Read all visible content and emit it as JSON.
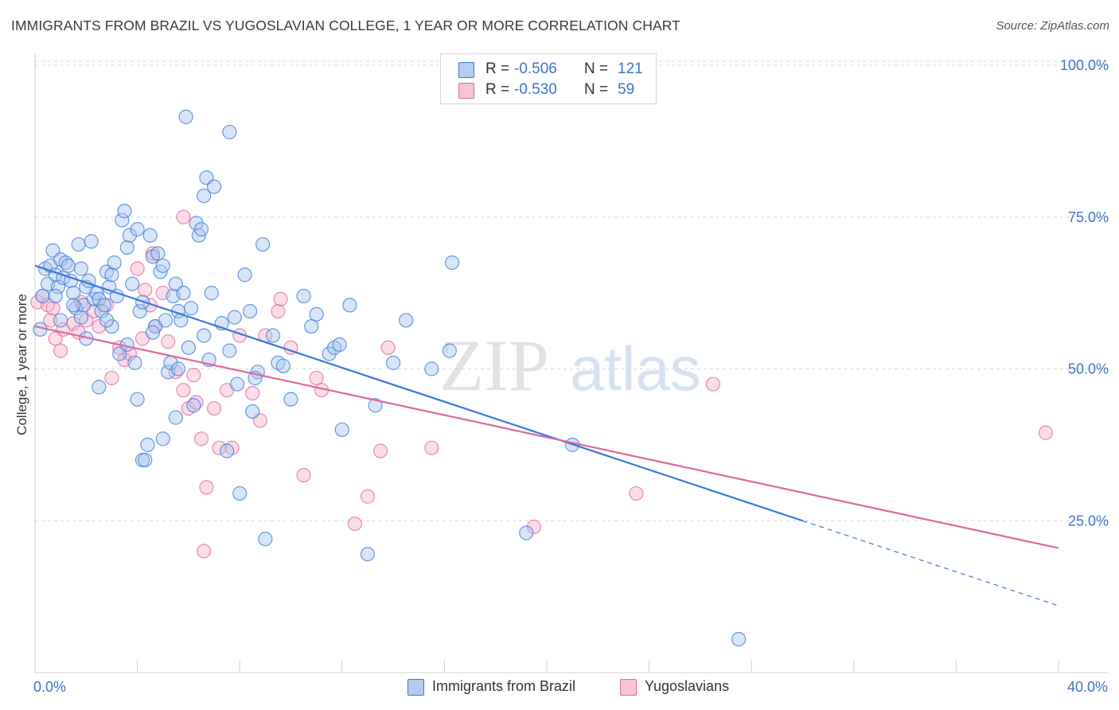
{
  "title": "IMMIGRANTS FROM BRAZIL VS YUGOSLAVIAN COLLEGE, 1 YEAR OR MORE CORRELATION CHART",
  "source": "Source: ZipAtlas.com",
  "watermark": {
    "part1": "ZIP",
    "part2": "atlas"
  },
  "colors": {
    "blue": "#3b78d8",
    "blue_fill": "#a9c6ee",
    "pink": "#e0679a",
    "pink_fill": "#f5b3cb",
    "axis_text": "#3f73c6",
    "grid": "#d9d9d9"
  },
  "stats_legend": {
    "rows": [
      {
        "r_label": "R =",
        "r_value": "-0.506",
        "n_label": "N =",
        "n_value": "121",
        "series": "blue"
      },
      {
        "r_label": "R =",
        "r_value": "-0.530",
        "n_label": "N =",
        "n_value": "59",
        "series": "pink"
      }
    ]
  },
  "chart_data": {
    "type": "scatter",
    "title": "IMMIGRANTS FROM BRAZIL VS YUGOSLAVIAN COLLEGE, 1 YEAR OR MORE CORRELATION CHART",
    "xlabel": "",
    "ylabel": "College, 1 year or more",
    "xlim": [
      0,
      40
    ],
    "ylim": [
      0,
      105
    ],
    "x_tick_labels": [
      {
        "value": 0,
        "label": "0.0%"
      },
      {
        "value": 40,
        "label": "40.0%"
      }
    ],
    "x_minor_ticks": [
      4,
      8,
      12,
      16,
      20,
      24,
      28,
      32,
      36,
      40
    ],
    "y_ticks": [
      {
        "value": 100,
        "label": "100.0%"
      },
      {
        "value": 75,
        "label": "75.0%"
      },
      {
        "value": 50,
        "label": "50.0%"
      },
      {
        "value": 25,
        "label": "25.0%"
      }
    ],
    "grid": true,
    "series": [
      {
        "name": "Immigrants from Brazil",
        "color": "blue",
        "R": -0.506,
        "N": 121,
        "trend": {
          "x_start": 0,
          "y_start": 67.0,
          "x_solid_end": 30.0,
          "y_solid_end": 25.0,
          "x_end": 40,
          "y_end": 11.0
        },
        "points": [
          [
            0.2,
            56.5
          ],
          [
            0.3,
            62.0
          ],
          [
            0.4,
            66.5
          ],
          [
            0.5,
            64.0
          ],
          [
            0.6,
            67.0
          ],
          [
            0.7,
            69.5
          ],
          [
            0.8,
            65.5
          ],
          [
            0.9,
            63.5
          ],
          [
            1.0,
            68.0
          ],
          [
            1.1,
            65.0
          ],
          [
            1.2,
            67.5
          ],
          [
            1.3,
            67.0
          ],
          [
            1.4,
            64.5
          ],
          [
            1.5,
            62.5
          ],
          [
            1.6,
            60.0
          ],
          [
            1.7,
            70.5
          ],
          [
            1.8,
            58.5
          ],
          [
            1.9,
            60.5
          ],
          [
            2.0,
            63.5
          ],
          [
            2.1,
            64.5
          ],
          [
            2.2,
            71.0
          ],
          [
            2.3,
            61.5
          ],
          [
            2.4,
            62.5
          ],
          [
            2.5,
            61.5
          ],
          [
            2.6,
            59.5
          ],
          [
            2.7,
            60.5
          ],
          [
            2.8,
            66.0
          ],
          [
            2.9,
            63.5
          ],
          [
            3.0,
            65.5
          ],
          [
            3.1,
            67.5
          ],
          [
            3.2,
            62.0
          ],
          [
            3.3,
            52.5
          ],
          [
            3.4,
            74.5
          ],
          [
            3.5,
            76.0
          ],
          [
            3.6,
            70.0
          ],
          [
            3.7,
            72.0
          ],
          [
            3.8,
            64.0
          ],
          [
            3.9,
            51.0
          ],
          [
            4.0,
            73.0
          ],
          [
            4.1,
            59.5
          ],
          [
            4.2,
            35.0
          ],
          [
            4.3,
            35.0
          ],
          [
            4.4,
            37.5
          ],
          [
            4.5,
            72.0
          ],
          [
            4.6,
            68.5
          ],
          [
            4.7,
            57.0
          ],
          [
            4.8,
            69.0
          ],
          [
            4.9,
            66.0
          ],
          [
            5.0,
            67.0
          ],
          [
            5.1,
            58.0
          ],
          [
            5.2,
            49.5
          ],
          [
            5.3,
            51.0
          ],
          [
            5.4,
            62.0
          ],
          [
            5.5,
            64.0
          ],
          [
            5.6,
            59.5
          ],
          [
            5.7,
            58.0
          ],
          [
            5.8,
            62.5
          ],
          [
            5.9,
            91.5
          ],
          [
            6.0,
            53.5
          ],
          [
            6.1,
            60.0
          ],
          [
            6.3,
            74.0
          ],
          [
            6.4,
            72.0
          ],
          [
            6.5,
            73.0
          ],
          [
            6.6,
            78.5
          ],
          [
            6.7,
            81.5
          ],
          [
            6.8,
            51.5
          ],
          [
            6.9,
            62.5
          ],
          [
            7.0,
            80.0
          ],
          [
            7.3,
            57.5
          ],
          [
            7.6,
            89.0
          ],
          [
            7.8,
            58.5
          ],
          [
            7.9,
            47.5
          ],
          [
            8.0,
            29.5
          ],
          [
            8.2,
            65.5
          ],
          [
            8.4,
            59.5
          ],
          [
            8.5,
            43.0
          ],
          [
            8.7,
            49.5
          ],
          [
            8.9,
            70.5
          ],
          [
            9.0,
            22.0
          ],
          [
            9.3,
            55.5
          ],
          [
            9.5,
            51.0
          ],
          [
            9.7,
            50.5
          ],
          [
            10.0,
            45.0
          ],
          [
            10.5,
            62.0
          ],
          [
            10.8,
            57.0
          ],
          [
            11.0,
            59.0
          ],
          [
            11.5,
            52.5
          ],
          [
            11.7,
            53.5
          ],
          [
            11.9,
            54.0
          ],
          [
            12.0,
            40.0
          ],
          [
            12.3,
            60.5
          ],
          [
            13.0,
            19.5
          ],
          [
            13.3,
            44.0
          ],
          [
            14.0,
            51.0
          ],
          [
            14.5,
            58.0
          ],
          [
            15.5,
            50.0
          ],
          [
            16.2,
            53.0
          ],
          [
            16.3,
            67.5
          ],
          [
            19.2,
            23.0
          ],
          [
            21.0,
            37.5
          ],
          [
            27.5,
            5.5
          ],
          [
            1.5,
            60.5
          ],
          [
            2.5,
            47.0
          ],
          [
            4.0,
            45.0
          ],
          [
            5.0,
            38.5
          ],
          [
            5.5,
            42.0
          ],
          [
            6.2,
            44.0
          ],
          [
            7.5,
            36.5
          ],
          [
            1.0,
            58.0
          ],
          [
            2.0,
            55.0
          ],
          [
            3.0,
            57.0
          ],
          [
            4.2,
            61.0
          ],
          [
            0.8,
            62.0
          ],
          [
            1.8,
            66.5
          ],
          [
            2.8,
            58.0
          ],
          [
            3.6,
            54.0
          ],
          [
            4.6,
            56.0
          ],
          [
            5.6,
            50.0
          ],
          [
            6.6,
            55.5
          ],
          [
            7.6,
            53.0
          ],
          [
            8.6,
            48.5
          ]
        ]
      },
      {
        "name": "Yugoslavians",
        "color": "pink",
        "R": -0.53,
        "N": 59,
        "trend": {
          "x_start": 0,
          "y_start": 57.0,
          "x_end": 40,
          "y_end": 20.5
        },
        "points": [
          [
            0.1,
            61.0
          ],
          [
            0.3,
            62.0
          ],
          [
            0.5,
            60.5
          ],
          [
            0.6,
            58.0
          ],
          [
            0.7,
            60.0
          ],
          [
            0.8,
            55.0
          ],
          [
            1.0,
            53.0
          ],
          [
            1.1,
            56.5
          ],
          [
            1.5,
            57.5
          ],
          [
            1.7,
            56.0
          ],
          [
            1.8,
            61.0
          ],
          [
            2.0,
            58.0
          ],
          [
            2.3,
            59.5
          ],
          [
            2.5,
            57.0
          ],
          [
            2.8,
            60.5
          ],
          [
            3.0,
            48.5
          ],
          [
            3.3,
            53.5
          ],
          [
            3.5,
            51.5
          ],
          [
            3.7,
            52.5
          ],
          [
            4.0,
            66.5
          ],
          [
            4.2,
            55.0
          ],
          [
            4.3,
            63.0
          ],
          [
            4.5,
            60.5
          ],
          [
            4.7,
            57.0
          ],
          [
            5.0,
            62.5
          ],
          [
            5.2,
            54.5
          ],
          [
            5.5,
            49.5
          ],
          [
            5.8,
            46.5
          ],
          [
            6.0,
            43.5
          ],
          [
            6.2,
            49.0
          ],
          [
            6.3,
            44.5
          ],
          [
            6.5,
            38.5
          ],
          [
            6.6,
            20.0
          ],
          [
            6.7,
            30.5
          ],
          [
            7.0,
            43.5
          ],
          [
            7.2,
            37.0
          ],
          [
            7.5,
            46.5
          ],
          [
            7.7,
            37.0
          ],
          [
            8.0,
            55.5
          ],
          [
            8.5,
            46.0
          ],
          [
            8.8,
            41.5
          ],
          [
            9.0,
            55.5
          ],
          [
            9.5,
            59.5
          ],
          [
            9.6,
            61.5
          ],
          [
            10.0,
            53.5
          ],
          [
            10.5,
            32.5
          ],
          [
            11.0,
            48.5
          ],
          [
            11.2,
            46.5
          ],
          [
            12.5,
            24.5
          ],
          [
            13.0,
            29.0
          ],
          [
            13.5,
            36.5
          ],
          [
            13.8,
            53.5
          ],
          [
            15.5,
            37.0
          ],
          [
            19.5,
            24.0
          ],
          [
            23.5,
            29.5
          ],
          [
            26.5,
            47.5
          ],
          [
            39.5,
            39.5
          ],
          [
            5.8,
            75.0
          ],
          [
            4.6,
            69.0
          ]
        ]
      }
    ]
  },
  "legend": {
    "items": [
      {
        "label": "Immigrants from Brazil",
        "series": "blue"
      },
      {
        "label": "Yugoslavians",
        "series": "pink"
      }
    ]
  }
}
